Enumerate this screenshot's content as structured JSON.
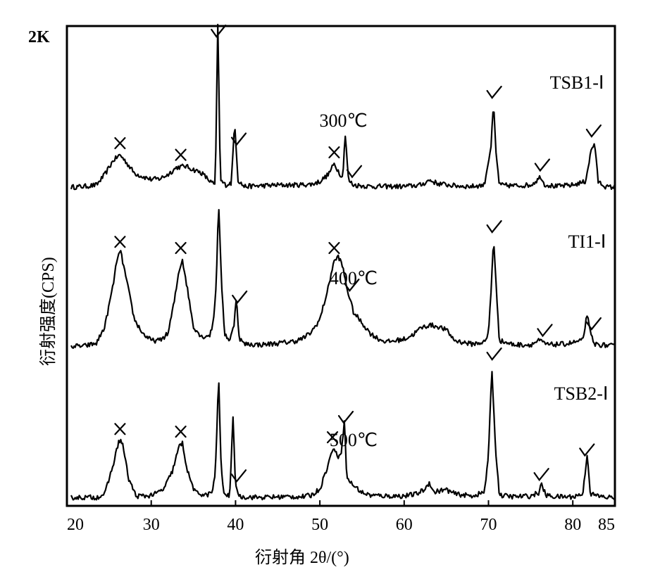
{
  "chart_data": {
    "type": "line",
    "xlabel": "衍射角 2θ/(°)",
    "ylabel": "衍射强度(CPS)",
    "scale_label": "2K",
    "xlim": [
      20,
      85
    ],
    "x_ticks": [
      20,
      30,
      40,
      50,
      60,
      70,
      80,
      85
    ],
    "grid": false,
    "series": [
      {
        "name": "TSB1-Ⅰ",
        "temperature": "300℃",
        "baseline_y": 0.0,
        "noise": 0.07,
        "points": [
          [
            20.5,
            0.02
          ],
          [
            22,
            0.03
          ],
          [
            23.5,
            0.05
          ],
          [
            24.5,
            0.2
          ],
          [
            25.5,
            0.4
          ],
          [
            26.3,
            0.48
          ],
          [
            27,
            0.38
          ],
          [
            28,
            0.22
          ],
          [
            29,
            0.17
          ],
          [
            30,
            0.13
          ],
          [
            31,
            0.14
          ],
          [
            32,
            0.2
          ],
          [
            33,
            0.3
          ],
          [
            34,
            0.32
          ],
          [
            35,
            0.27
          ],
          [
            36,
            0.22
          ],
          [
            37,
            0.1
          ],
          [
            37.6,
            0.05
          ],
          [
            37.9,
            2.35
          ],
          [
            38.2,
            0.12
          ],
          [
            38.8,
            0.05
          ],
          [
            39.5,
            0.08
          ],
          [
            39.9,
            0.95
          ],
          [
            40.3,
            0.12
          ],
          [
            41,
            0.03
          ],
          [
            43,
            0.04
          ],
          [
            45,
            0.05
          ],
          [
            47,
            0.05
          ],
          [
            49,
            0.06
          ],
          [
            50,
            0.1
          ],
          [
            51,
            0.2
          ],
          [
            51.7,
            0.35
          ],
          [
            52.2,
            0.25
          ],
          [
            52.7,
            0.15
          ],
          [
            53,
            0.78
          ],
          [
            53.4,
            0.12
          ],
          [
            54,
            0.05
          ],
          [
            56,
            0.03
          ],
          [
            58,
            0.03
          ],
          [
            60,
            0.03
          ],
          [
            62,
            0.05
          ],
          [
            63,
            0.12
          ],
          [
            64,
            0.07
          ],
          [
            66,
            0.04
          ],
          [
            68,
            0.03
          ],
          [
            69.5,
            0.05
          ],
          [
            70.3,
            0.6
          ],
          [
            70.6,
            1.2
          ],
          [
            70.9,
            0.5
          ],
          [
            71.3,
            0.05
          ],
          [
            73,
            0.04
          ],
          [
            75,
            0.05
          ],
          [
            75.8,
            0.12
          ],
          [
            76.2,
            0.18
          ],
          [
            76.6,
            0.06
          ],
          [
            78,
            0.03
          ],
          [
            80,
            0.05
          ],
          [
            81.5,
            0.1
          ],
          [
            82.2,
            0.55
          ],
          [
            82.6,
            0.65
          ],
          [
            83,
            0.1
          ],
          [
            84,
            0.02
          ],
          [
            85,
            0.02
          ]
        ]
      },
      {
        "name": "TI1-Ⅰ",
        "temperature": "400℃",
        "baseline_y": 0.0,
        "noise": 0.07,
        "points": [
          [
            20.5,
            0.02
          ],
          [
            22,
            0.02
          ],
          [
            23.5,
            0.06
          ],
          [
            24.5,
            0.3
          ],
          [
            25.5,
            0.9
          ],
          [
            26,
            1.3
          ],
          [
            26.4,
            1.35
          ],
          [
            27,
            1.0
          ],
          [
            28,
            0.4
          ],
          [
            29,
            0.2
          ],
          [
            30,
            0.1
          ],
          [
            31,
            0.1
          ],
          [
            32,
            0.2
          ],
          [
            32.8,
            0.7
          ],
          [
            33.3,
            1.1
          ],
          [
            33.7,
            1.25
          ],
          [
            34.2,
            0.9
          ],
          [
            35,
            0.3
          ],
          [
            36,
            0.15
          ],
          [
            37,
            0.18
          ],
          [
            37.4,
            0.4
          ],
          [
            37.7,
            0.9
          ],
          [
            38,
            2.05
          ],
          [
            38.3,
            1.0
          ],
          [
            38.7,
            0.2
          ],
          [
            39.3,
            0.1
          ],
          [
            39.8,
            0.3
          ],
          [
            40.1,
            0.75
          ],
          [
            40.4,
            0.15
          ],
          [
            41,
            0.05
          ],
          [
            43,
            0.04
          ],
          [
            45,
            0.06
          ],
          [
            47,
            0.09
          ],
          [
            48,
            0.13
          ],
          [
            49,
            0.22
          ],
          [
            50,
            0.4
          ],
          [
            51,
            0.85
          ],
          [
            51.6,
            1.2
          ],
          [
            52.2,
            1.3
          ],
          [
            52.7,
            1.15
          ],
          [
            53.2,
            0.85
          ],
          [
            54,
            0.5
          ],
          [
            55,
            0.35
          ],
          [
            56,
            0.2
          ],
          [
            57,
            0.12
          ],
          [
            58,
            0.08
          ],
          [
            60,
            0.12
          ],
          [
            61,
            0.18
          ],
          [
            62,
            0.28
          ],
          [
            63,
            0.32
          ],
          [
            64,
            0.3
          ],
          [
            65,
            0.25
          ],
          [
            66,
            0.1
          ],
          [
            68,
            0.05
          ],
          [
            69.6,
            0.08
          ],
          [
            70,
            0.2
          ],
          [
            70.3,
            0.8
          ],
          [
            70.6,
            1.55
          ],
          [
            70.9,
            0.9
          ],
          [
            71.3,
            0.1
          ],
          [
            73,
            0.04
          ],
          [
            75,
            0.04
          ],
          [
            76,
            0.1
          ],
          [
            77,
            0.04
          ],
          [
            79,
            0.05
          ],
          [
            80,
            0.07
          ],
          [
            81.2,
            0.1
          ],
          [
            81.7,
            0.48
          ],
          [
            82,
            0.25
          ],
          [
            82.5,
            0.05
          ],
          [
            84,
            0.03
          ],
          [
            85,
            0.02
          ]
        ]
      },
      {
        "name": "TSB2-Ⅰ",
        "temperature": "500℃",
        "baseline_y": 0.0,
        "noise": 0.07,
        "points": [
          [
            20.5,
            0.03
          ],
          [
            22,
            0.03
          ],
          [
            23.5,
            0.03
          ],
          [
            24.5,
            0.08
          ],
          [
            25.5,
            0.5
          ],
          [
            26.2,
            0.85
          ],
          [
            26.6,
            0.8
          ],
          [
            27.3,
            0.3
          ],
          [
            28.2,
            0.05
          ],
          [
            29.5,
            0.05
          ],
          [
            30.5,
            0.08
          ],
          [
            31.5,
            0.15
          ],
          [
            32.5,
            0.4
          ],
          [
            33.3,
            0.75
          ],
          [
            33.7,
            0.8
          ],
          [
            34.3,
            0.4
          ],
          [
            35.2,
            0.1
          ],
          [
            36.5,
            0.06
          ],
          [
            37.2,
            0.1
          ],
          [
            37.6,
            0.35
          ],
          [
            38,
            1.75
          ],
          [
            38.3,
            0.4
          ],
          [
            38.7,
            0.05
          ],
          [
            39.3,
            0.06
          ],
          [
            39.7,
            1.15
          ],
          [
            40,
            0.2
          ],
          [
            40.5,
            0.04
          ],
          [
            43,
            0.03
          ],
          [
            46,
            0.04
          ],
          [
            48,
            0.04
          ],
          [
            49,
            0.06
          ],
          [
            50,
            0.15
          ],
          [
            51,
            0.5
          ],
          [
            51.6,
            0.75
          ],
          [
            52.1,
            0.6
          ],
          [
            52.6,
            0.7
          ],
          [
            52.9,
            1.15
          ],
          [
            53.2,
            0.3
          ],
          [
            54,
            0.2
          ],
          [
            55,
            0.1
          ],
          [
            56,
            0.06
          ],
          [
            58,
            0.05
          ],
          [
            60,
            0.05
          ],
          [
            61.5,
            0.08
          ],
          [
            62.5,
            0.15
          ],
          [
            63,
            0.25
          ],
          [
            63.5,
            0.1
          ],
          [
            64,
            0.12
          ],
          [
            65,
            0.14
          ],
          [
            66,
            0.08
          ],
          [
            68,
            0.05
          ],
          [
            69.5,
            0.1
          ],
          [
            70,
            0.6
          ],
          [
            70.4,
            1.9
          ],
          [
            70.8,
            0.8
          ],
          [
            71.3,
            0.06
          ],
          [
            73,
            0.04
          ],
          [
            75,
            0.05
          ],
          [
            76,
            0.1
          ],
          [
            76.3,
            0.22
          ],
          [
            76.8,
            0.06
          ],
          [
            78,
            0.04
          ],
          [
            80,
            0.04
          ],
          [
            81.2,
            0.08
          ],
          [
            81.7,
            0.65
          ],
          [
            82.1,
            0.08
          ],
          [
            83,
            0.05
          ],
          [
            84,
            0.03
          ],
          [
            85,
            0.03
          ]
        ]
      }
    ],
    "annotations": [
      {
        "text": "TSB1-Ⅰ",
        "x": 80.5,
        "series": 0,
        "y": 1.42
      },
      {
        "text": "300℃",
        "x": 52.8,
        "series": 0,
        "y": 0.88
      },
      {
        "text": "TI1-Ⅰ",
        "x": 81.7,
        "series": 1,
        "y": 1.42
      },
      {
        "text": "400℃",
        "x": 54.0,
        "series": 1,
        "y": 0.9
      },
      {
        "text": "TSB2-Ⅰ",
        "x": 81.0,
        "series": 2,
        "y": 1.42
      },
      {
        "text": "500℃",
        "x": 54.0,
        "series": 2,
        "y": 0.76
      }
    ],
    "peak_markers": [
      {
        "series": 0,
        "x": 26.3,
        "type": "x"
      },
      {
        "series": 0,
        "x": 33.5,
        "type": "x"
      },
      {
        "series": 0,
        "x": 37.9,
        "type": "check"
      },
      {
        "series": 0,
        "x": 40.3,
        "type": "check"
      },
      {
        "series": 0,
        "x": 51.7,
        "type": "x"
      },
      {
        "series": 0,
        "x": 54.0,
        "type": "check"
      },
      {
        "series": 0,
        "x": 70.6,
        "type": "check"
      },
      {
        "series": 0,
        "x": 76.3,
        "type": "check"
      },
      {
        "series": 0,
        "x": 82.4,
        "type": "check"
      },
      {
        "series": 1,
        "x": 26.3,
        "type": "x"
      },
      {
        "series": 1,
        "x": 33.5,
        "type": "x"
      },
      {
        "series": 1,
        "x": 40.4,
        "type": "check"
      },
      {
        "series": 1,
        "x": 51.7,
        "type": "x"
      },
      {
        "series": 1,
        "x": 53.7,
        "type": "check"
      },
      {
        "series": 1,
        "x": 70.6,
        "type": "check"
      },
      {
        "series": 1,
        "x": 76.6,
        "type": "check"
      },
      {
        "series": 1,
        "x": 82.4,
        "type": "check"
      },
      {
        "series": 2,
        "x": 26.3,
        "type": "x"
      },
      {
        "series": 2,
        "x": 33.5,
        "type": "x"
      },
      {
        "series": 2,
        "x": 40.3,
        "type": "check"
      },
      {
        "series": 2,
        "x": 51.5,
        "type": "x"
      },
      {
        "series": 2,
        "x": 53.0,
        "type": "check"
      },
      {
        "series": 2,
        "x": 70.6,
        "type": "check"
      },
      {
        "series": 2,
        "x": 76.2,
        "type": "check"
      },
      {
        "series": 2,
        "x": 81.6,
        "type": "check"
      }
    ]
  }
}
